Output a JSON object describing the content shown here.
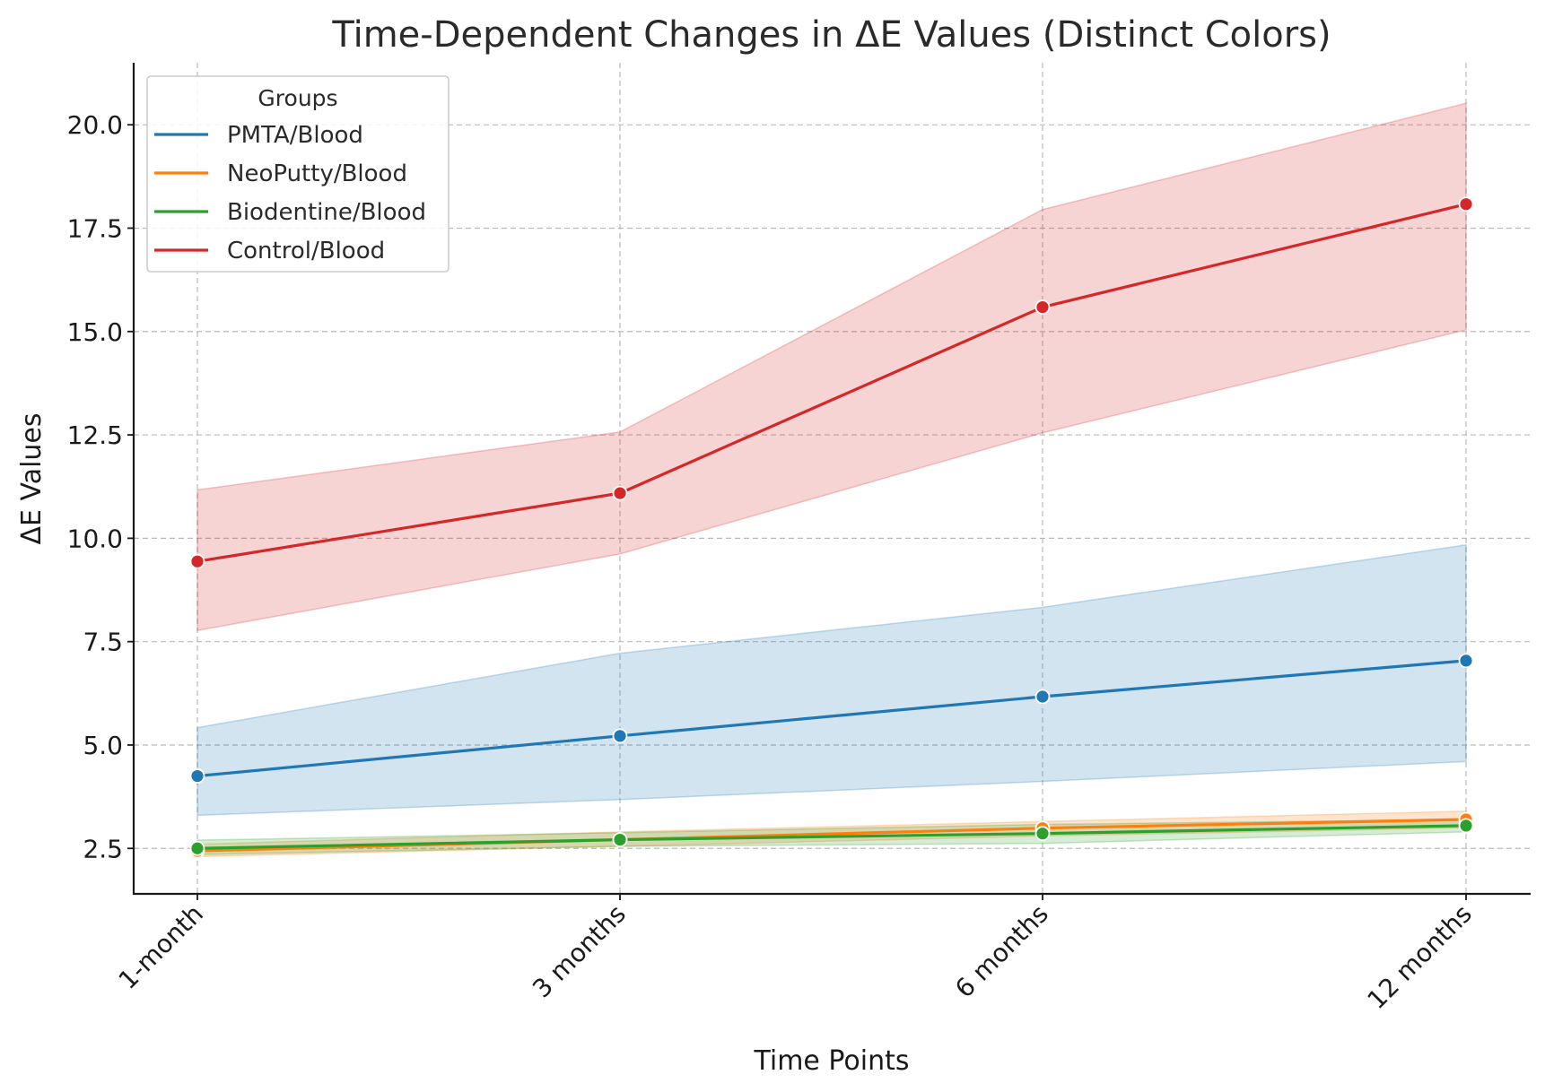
{
  "chart_data": {
    "type": "line",
    "title": "Time-Dependent Changes in ΔE Values (Distinct Colors)",
    "xlabel": "Time Points",
    "ylabel": "ΔE Values",
    "categories": [
      "1-month",
      "3 months",
      "6 months",
      "12 months"
    ],
    "ylim": [
      1.4,
      21.5
    ],
    "yticks": [
      2.5,
      5.0,
      7.5,
      10.0,
      12.5,
      15.0,
      17.5,
      20.0
    ],
    "ytick_labels": [
      "2.5",
      "5.0",
      "7.5",
      "10.0",
      "12.5",
      "15.0",
      "17.5",
      "20.0"
    ],
    "grid": true,
    "legend": {
      "title": "Groups",
      "placement": "top-left"
    },
    "series": [
      {
        "name": "PMTA/Blood",
        "color": "#1f77b4",
        "values": [
          4.25,
          5.22,
          6.17,
          7.04
        ],
        "lower": [
          3.3,
          3.68,
          4.12,
          4.6
        ],
        "upper": [
          5.42,
          7.22,
          8.33,
          9.84
        ]
      },
      {
        "name": "NeoPutty/Blood",
        "color": "#ff7f0e",
        "values": [
          2.44,
          2.71,
          2.99,
          3.2
        ],
        "lower": [
          2.3,
          2.55,
          2.8,
          3.0
        ],
        "upper": [
          2.6,
          2.9,
          3.15,
          3.4
        ]
      },
      {
        "name": "Biodentine/Blood",
        "color": "#2ca02c",
        "values": [
          2.5,
          2.71,
          2.86,
          3.05
        ],
        "lower": [
          2.35,
          2.55,
          2.62,
          2.9
        ],
        "upper": [
          2.7,
          2.88,
          3.08,
          3.2
        ]
      },
      {
        "name": "Control/Blood",
        "color": "#d62728",
        "values": [
          9.44,
          11.09,
          15.59,
          18.08
        ],
        "lower": [
          7.77,
          9.62,
          12.55,
          15.04
        ],
        "upper": [
          11.17,
          12.57,
          17.95,
          20.52
        ]
      }
    ]
  }
}
